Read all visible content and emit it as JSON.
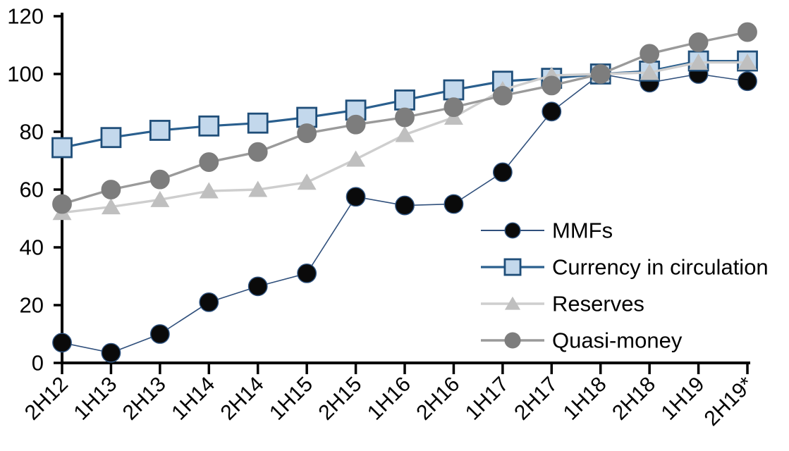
{
  "chart_data": {
    "type": "line",
    "title": "",
    "xlabel": "",
    "ylabel": "",
    "grid": false,
    "legend_position": "inside-right",
    "ylim": [
      0,
      120
    ],
    "yticks": [
      0,
      20,
      40,
      60,
      80,
      100,
      120
    ],
    "categories": [
      "2H12",
      "1H13",
      "2H13",
      "1H14",
      "2H14",
      "1H15",
      "2H15",
      "1H16",
      "2H16",
      "1H17",
      "2H17",
      "1H18",
      "2H18",
      "1H19",
      "2H19*"
    ],
    "series": [
      {
        "name": "MMFs",
        "marker": "circle",
        "marker_color": "#0a0a0a",
        "marker_border": "#2e5380",
        "line_color": "#30507c",
        "line_width": 1.6,
        "values": [
          7,
          3.5,
          10,
          21,
          26.5,
          31,
          57.5,
          54.5,
          55,
          66,
          87,
          100,
          97,
          100,
          97.5
        ]
      },
      {
        "name": "Currency in circulation",
        "marker": "square",
        "marker_color": "#c3d8ec",
        "marker_border": "#1f4e79",
        "line_color": "#2a5f8e",
        "line_width": 3.2,
        "values": [
          74.5,
          78,
          80.5,
          82,
          83,
          85,
          87.5,
          91,
          94.5,
          97.5,
          98.5,
          100,
          101,
          104.5,
          104.5
        ]
      },
      {
        "name": "Reserves",
        "marker": "triangle",
        "marker_color": "#bfbfbf",
        "marker_border": "#bfbfbf",
        "line_color": "#cecece",
        "line_width": 3.4,
        "values": [
          52,
          54,
          56.5,
          59.5,
          60,
          62.5,
          70.5,
          79,
          85,
          94.5,
          99.5,
          100,
          100.5,
          104,
          104
        ]
      },
      {
        "name": "Quasi-money",
        "marker": "circle",
        "marker_color": "#7d7d7d",
        "marker_border": "#7d7d7d",
        "line_color": "#9a9a9a",
        "line_width": 3.4,
        "values": [
          55,
          60,
          63.5,
          69.5,
          73,
          79.5,
          82.5,
          85,
          88.5,
          92.5,
          96,
          100,
          107,
          111,
          114.5
        ]
      }
    ],
    "axis_color": "#000000"
  }
}
